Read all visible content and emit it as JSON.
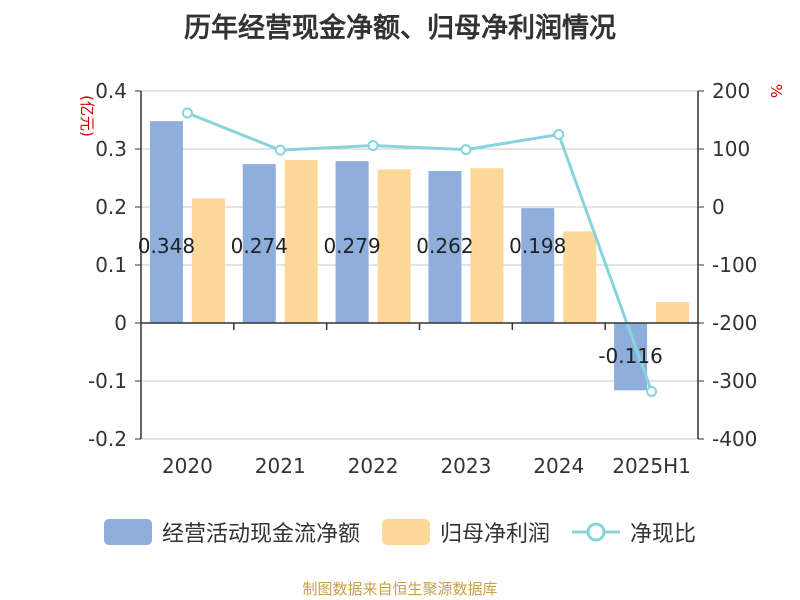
{
  "chart_data": {
    "type": "bar",
    "title": "历年经营现金净额、归母净利润情况",
    "categories": [
      "2020",
      "2021",
      "2022",
      "2023",
      "2024",
      "2025H1"
    ],
    "y_left": {
      "unit": "(亿元)",
      "ylim": [
        -0.2,
        0.4
      ],
      "ticks": [
        "0.4",
        "0.3",
        "0.2",
        "0.1",
        "0",
        "-0.1",
        "-0.2"
      ]
    },
    "y_right": {
      "unit": "%",
      "ylim": [
        -400,
        200
      ],
      "ticks": [
        "200",
        "100",
        "0",
        "-100",
        "-200",
        "-300",
        "-400"
      ]
    },
    "series": [
      {
        "name": "经营活动现金流净额",
        "type": "bar",
        "axis": "left",
        "color": "#8eaedc",
        "values": [
          0.348,
          0.274,
          0.279,
          0.262,
          0.198,
          -0.116
        ],
        "labels": [
          "0.348",
          "0.274",
          "0.279",
          "0.262",
          "0.198",
          "-0.116"
        ]
      },
      {
        "name": "归母净利润",
        "type": "bar",
        "axis": "left",
        "color": "#fdd898",
        "values": [
          0.215,
          0.281,
          0.265,
          0.267,
          0.158,
          0.036
        ]
      },
      {
        "name": "净现比",
        "type": "line",
        "axis": "right",
        "color": "#88d4dc",
        "values": [
          162,
          98,
          106,
          99,
          125,
          -318
        ]
      }
    ],
    "grid": true,
    "legend_position": "bottom"
  },
  "source": "制图数据来自恒生聚源数据库"
}
